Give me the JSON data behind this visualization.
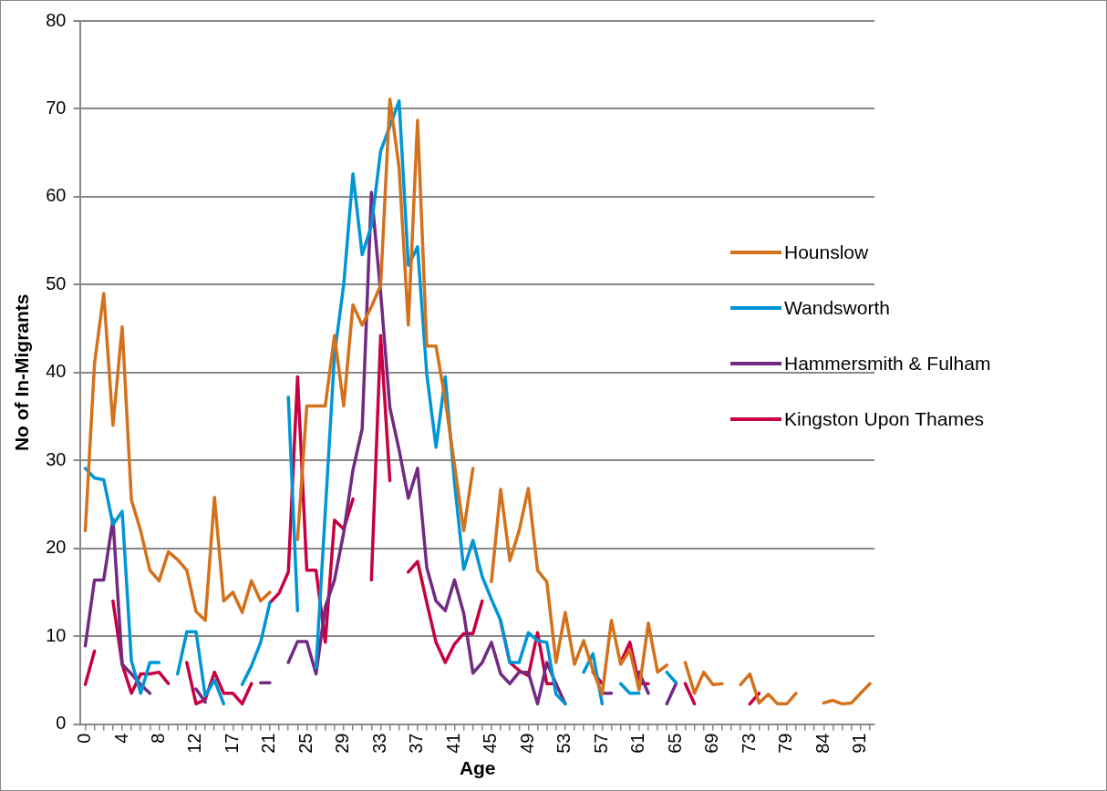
{
  "chart_data": {
    "type": "line",
    "xlabel": "Age",
    "ylabel": "No of In-Migrants",
    "categories": [
      "0",
      null,
      null,
      null,
      "4",
      null,
      null,
      null,
      "8",
      null,
      null,
      null,
      "12",
      null,
      null,
      null,
      "17",
      null,
      null,
      null,
      "21",
      null,
      null,
      null,
      "25",
      null,
      null,
      null,
      "29",
      null,
      null,
      null,
      "33",
      null,
      null,
      null,
      "37",
      null,
      null,
      null,
      "41",
      null,
      null,
      null,
      "45",
      null,
      null,
      null,
      "49",
      null,
      null,
      null,
      "53",
      null,
      null,
      null,
      "57",
      null,
      null,
      null,
      "61",
      null,
      null,
      null,
      "65",
      null,
      null,
      null,
      "69",
      null,
      null,
      null,
      "73",
      null,
      null,
      null,
      "79",
      null,
      null,
      null,
      "84",
      null,
      null,
      null,
      "91",
      null
    ],
    "ylim": [
      0,
      80
    ],
    "yticks": [
      0,
      10,
      20,
      30,
      40,
      50,
      60,
      70,
      80
    ],
    "grid": "y",
    "legend": "right",
    "marker": "none",
    "line_style": "solid",
    "series": [
      {
        "name": "Hounslow",
        "color": "#d4711c",
        "values": [
          22,
          41,
          49,
          34,
          45.2,
          25.5,
          22,
          17.5,
          16.3,
          19.6,
          18.7,
          17.5,
          12.8,
          11.8,
          25.8,
          14,
          15,
          12.7,
          16.3,
          14,
          15,
          null,
          null,
          21,
          36.2,
          36.2,
          36.2,
          44.2,
          36.2,
          47.7,
          45.4,
          47.5,
          49.9,
          71.1,
          63.3,
          45.4,
          68.7,
          43,
          43,
          36.9,
          29.5,
          22,
          29.1,
          null,
          16.2,
          26.7,
          18.6,
          22,
          26.8,
          17.5,
          16.2,
          7,
          12.7,
          6.8,
          9.5,
          6.1,
          3.4,
          11.8,
          6.8,
          8.4,
          3.9,
          11.5,
          5.9,
          6.7,
          null,
          7,
          3.5,
          5.9,
          4.5,
          4.6,
          null,
          4.5,
          5.7,
          2.4,
          3.4,
          2.3,
          2.3,
          3.5,
          null,
          null,
          2.4,
          2.7,
          2.3,
          2.4,
          3.5,
          4.6
        ]
      },
      {
        "name": "Wandsworth",
        "color": "#0096d6",
        "values": [
          29.1,
          28,
          27.8,
          22.7,
          24.2,
          7.2,
          3.5,
          7,
          7,
          null,
          5.7,
          10.5,
          10.5,
          3.2,
          5,
          2.3,
          null,
          4.5,
          6.6,
          9.3,
          13.8,
          null,
          37.2,
          12.9,
          null,
          6.4,
          24.1,
          42,
          50,
          62.6,
          53.4,
          56.7,
          65.2,
          68,
          70.9,
          52.2,
          54.3,
          39.8,
          31.5,
          39.5,
          27.5,
          17.6,
          20.9,
          16.8,
          14.2,
          11.8,
          7,
          7,
          10.4,
          9.5,
          9.3,
          3.4,
          2.3,
          null,
          5.9,
          8,
          2.3,
          null,
          4.6,
          3.5,
          3.5,
          null,
          null,
          5.9,
          4.7,
          null,
          null,
          null,
          null,
          null,
          null,
          null,
          null,
          null,
          null,
          null,
          null,
          null,
          null,
          null,
          null,
          null,
          null,
          null,
          null,
          null
        ]
      },
      {
        "name": "Hammersmith & Fulham",
        "color": "#722a82",
        "values": [
          8.9,
          16.4,
          16.4,
          23.3,
          6.8,
          5.7,
          4.5,
          3.5,
          null,
          null,
          null,
          null,
          4,
          2.5,
          null,
          null,
          null,
          null,
          null,
          4.7,
          4.7,
          null,
          7,
          9.4,
          9.4,
          5.7,
          13.3,
          16.4,
          21.8,
          28.9,
          33.6,
          60.5,
          49.1,
          36,
          31.2,
          25.7,
          29.1,
          17.8,
          14,
          12.9,
          16.4,
          12.6,
          5.8,
          7,
          9.3,
          5.7,
          4.6,
          5.9,
          5.9,
          2.3,
          7,
          4.6,
          2.3,
          null,
          null,
          null,
          3.5,
          3.5,
          null,
          null,
          5.9,
          3.5,
          null,
          2.3,
          4.6,
          null,
          null,
          null,
          null,
          null,
          null,
          null,
          null,
          null,
          null,
          null,
          null,
          null,
          null,
          null,
          null,
          null,
          null,
          null,
          null,
          null
        ]
      },
      {
        "name": "Kingston Upon Thames",
        "color": "#c8003f",
        "values": [
          4.5,
          8.3,
          null,
          14,
          6.8,
          3.5,
          5.7,
          5.7,
          5.9,
          4.6,
          null,
          7,
          2.3,
          2.8,
          5.9,
          3.5,
          3.5,
          2.3,
          4.6,
          null,
          13.8,
          14.9,
          17.3,
          39.5,
          17.5,
          17.5,
          9.3,
          23.2,
          22.2,
          25.6,
          null,
          16.4,
          44.2,
          27.7,
          null,
          17.3,
          18.5,
          13.8,
          9.3,
          7,
          9.1,
          10.3,
          10.3,
          14,
          null,
          11.7,
          7,
          6.1,
          5.5,
          10.4,
          4.6,
          4.6,
          null,
          null,
          null,
          5.9,
          4.6,
          null,
          7,
          9.3,
          4.6,
          4.6,
          null,
          null,
          null,
          4.6,
          2.3,
          null,
          null,
          null,
          null,
          null,
          2.3,
          3.5,
          null,
          null,
          null,
          null,
          null,
          null,
          null,
          null,
          null,
          null,
          null,
          null
        ]
      }
    ]
  }
}
